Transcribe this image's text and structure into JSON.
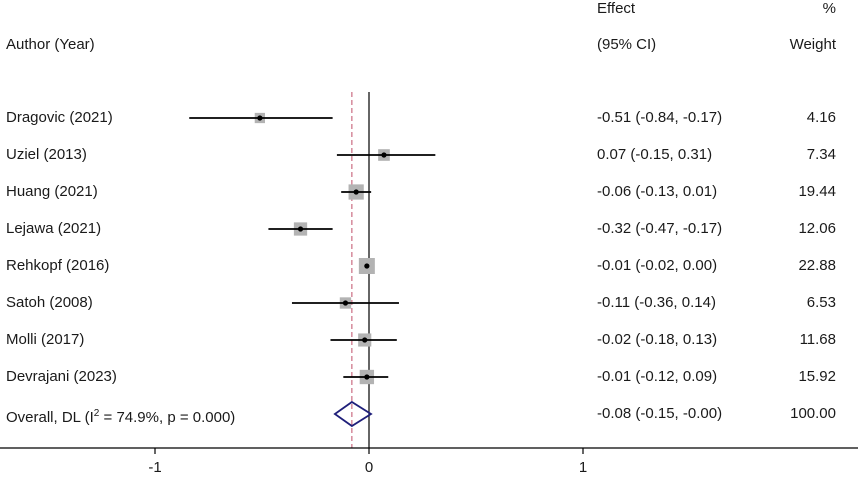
{
  "header": {
    "author_col": "Author (Year)",
    "effect_line1": "Effect",
    "effect_line2": "(95% CI)",
    "weight_line1": "%",
    "weight_line2": "Weight"
  },
  "chart_data": {
    "type": "forest",
    "null_line": 0,
    "xlim": [
      -1.7,
      2.2
    ],
    "xticks": [
      -1,
      0,
      1
    ],
    "xtick_labels": [
      "-1",
      "0",
      "1"
    ],
    "studies": [
      {
        "label": "Dragovic (2021)",
        "effect": -0.51,
        "lower": -0.84,
        "upper": -0.17,
        "ci_text": "-0.51 (-0.84, -0.17)",
        "weight": 4.16,
        "weight_text": "4.16"
      },
      {
        "label": "Uziel (2013)",
        "effect": 0.07,
        "lower": -0.15,
        "upper": 0.31,
        "ci_text": "0.07 (-0.15, 0.31)",
        "weight": 7.34,
        "weight_text": "7.34"
      },
      {
        "label": "Huang (2021)",
        "effect": -0.06,
        "lower": -0.13,
        "upper": 0.01,
        "ci_text": "-0.06 (-0.13, 0.01)",
        "weight": 19.44,
        "weight_text": "19.44"
      },
      {
        "label": "Lejawa (2021)",
        "effect": -0.32,
        "lower": -0.47,
        "upper": -0.17,
        "ci_text": "-0.32 (-0.47, -0.17)",
        "weight": 12.06,
        "weight_text": "12.06"
      },
      {
        "label": "Rehkopf (2016)",
        "effect": -0.01,
        "lower": -0.02,
        "upper": 0.0,
        "ci_text": "-0.01 (-0.02, 0.00)",
        "weight": 22.88,
        "weight_text": "22.88"
      },
      {
        "label": "Satoh (2008)",
        "effect": -0.11,
        "lower": -0.36,
        "upper": 0.14,
        "ci_text": "-0.11 (-0.36, 0.14)",
        "weight": 6.53,
        "weight_text": "6.53"
      },
      {
        "label": "Molli (2017)",
        "effect": -0.02,
        "lower": -0.18,
        "upper": 0.13,
        "ci_text": "-0.02 (-0.18, 0.13)",
        "weight": 11.68,
        "weight_text": "11.68"
      },
      {
        "label": "Devrajani (2023)",
        "effect": -0.01,
        "lower": -0.12,
        "upper": 0.09,
        "ci_text": "-0.01 (-0.12, 0.09)",
        "weight": 15.92,
        "weight_text": "15.92"
      }
    ],
    "overall": {
      "label_prefix": "Overall, DL (I",
      "label_sup": "2",
      "label_suffix": " = 74.9%, p = 0.000)",
      "effect": -0.08,
      "lower": -0.15,
      "upper": 0.0,
      "ci_text": "-0.08 (-0.15, -0.00)",
      "weight_text": "100.00"
    },
    "colors": {
      "ci_line": "#000000",
      "weight_box": "#b3b3b3",
      "overall_diamond": "#1f1f7a",
      "overall_line": "#c0506a",
      "axis": "#000000"
    }
  }
}
